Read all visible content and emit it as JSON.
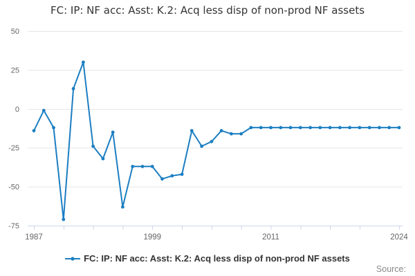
{
  "chart_data": {
    "type": "line",
    "title": "FC: IP: NF acc: Asst: K.2: Acq less disp of non-prod NF assets",
    "xlabel": "",
    "ylabel": "",
    "ylim": [
      -75,
      50
    ],
    "yticks": [
      50,
      25,
      0,
      -25,
      -50,
      -75
    ],
    "xticks": [
      1987,
      1990,
      1993,
      1996,
      1999,
      2002,
      2005,
      2008,
      2011,
      2014,
      2017,
      2020,
      2024
    ],
    "xtick_labels_shown": [
      1987,
      1999,
      2011,
      2024
    ],
    "grid": true,
    "legend_position": "bottom",
    "series": [
      {
        "name": "FC: IP: NF acc: Asst: K.2: Acq less disp of non-prod NF assets",
        "color": "#1b7ec2",
        "marker": "circle",
        "x": [
          1987,
          1988,
          1989,
          1990,
          1991,
          1992,
          1993,
          1994,
          1995,
          1996,
          1997,
          1998,
          1999,
          2000,
          2001,
          2002,
          2003,
          2004,
          2005,
          2006,
          2007,
          2008,
          2009,
          2010,
          2011,
          2012,
          2013,
          2014,
          2015,
          2016,
          2017,
          2018,
          2019,
          2020,
          2021,
          2022,
          2023,
          2024
        ],
        "values": [
          -14,
          -1,
          -12,
          -71,
          13,
          30,
          -24,
          -32,
          -15,
          -63,
          -37,
          -37,
          -37,
          -45,
          -43,
          -42,
          -14,
          -24,
          -21,
          -14,
          -16,
          -16,
          -12,
          -12,
          -12,
          -12,
          -12,
          -12,
          -12,
          -12,
          -12,
          -12,
          -12,
          -12,
          -12,
          -12,
          -12,
          -12
        ]
      }
    ]
  },
  "theme": {
    "line_color": "#1b7ec2",
    "grid_color": "#e6e6e6",
    "axis_color": "#ccd6eb",
    "tick_label_color": "#666666",
    "title_color": "#333333",
    "legend_text_color": "#333333",
    "source_text_color": "#888888",
    "background": "#ffffff"
  },
  "footer": {
    "source_label": "Source:"
  }
}
